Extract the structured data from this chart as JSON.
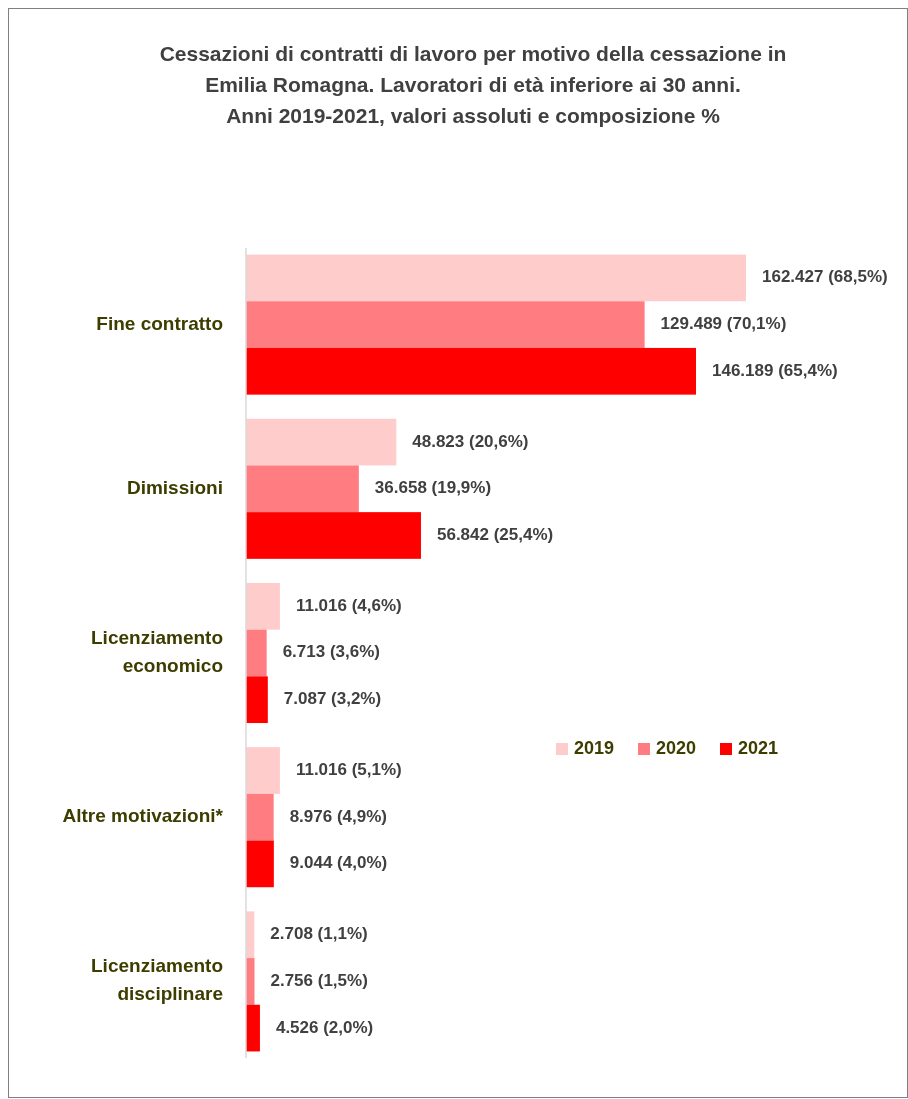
{
  "chart_data": {
    "type": "bar",
    "orientation": "horizontal",
    "title": "Cessazioni di contratti di lavoro per motivo della cessazione in\nEmilia Romagna. Lavoratori di età inferiore ai 30 anni.\nAnni 2019-2021, valori assoluti e composizione %",
    "categories": [
      "Fine contratto",
      "Dimissioni",
      "Licenziamento economico",
      "Altre motivazioni*",
      "Licenziamento disciplinare"
    ],
    "series": [
      {
        "name": "2019",
        "color": "#ffcccc",
        "values": [
          162427,
          48823,
          11016,
          11016,
          2708
        ],
        "value_labels": [
          "162.427 (68,5%)",
          "48.823 (20,6%)",
          "11.016 (4,6%)",
          "11.016 (5,1%)",
          "2.708 (1,1%)"
        ]
      },
      {
        "name": "2020",
        "color": "#ff7c80",
        "values": [
          129489,
          36658,
          6713,
          8976,
          2756
        ],
        "value_labels": [
          "129.489 (70,1%)",
          "36.658 (19,9%)",
          "6.713 (3,6%)",
          "8.976 (4,9%)",
          "2.756 (1,5%)"
        ]
      },
      {
        "name": "2021",
        "color": "#ff0000",
        "values": [
          146189,
          56842,
          7087,
          9044,
          4526
        ],
        "value_labels": [
          "146.189 (65,4%)",
          "56.842 (25,4%)",
          "7.087 (3,2%)",
          "9.044 (4,0%)",
          "4.526 (2,0%)"
        ]
      }
    ],
    "legend": "right"
  }
}
